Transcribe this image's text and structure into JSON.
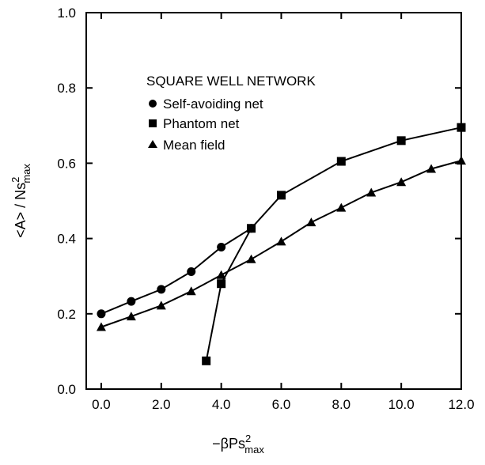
{
  "chart_data": {
    "type": "line",
    "title": "SQUARE WELL NETWORK",
    "xlabel": {
      "main": "−βPs",
      "sup": "2",
      "sub": "max"
    },
    "ylabel": {
      "main": "<A> / Ns",
      "sup": "2",
      "sub": "max"
    },
    "xlim": [
      -0.5,
      12.0
    ],
    "ylim": [
      0.0,
      1.0
    ],
    "xticks": [
      0,
      2,
      4,
      6,
      8,
      10,
      12
    ],
    "xtick_labels": [
      "0.0",
      "2.0",
      "4.0",
      "6.0",
      "8.0",
      "10.0",
      "12.0"
    ],
    "yticks": [
      0.0,
      0.2,
      0.4,
      0.6,
      0.8,
      1.0
    ],
    "ytick_labels": [
      "0.0",
      "0.2",
      "0.4",
      "0.6",
      "0.8",
      "1.0"
    ],
    "grid": false,
    "legend_position": "top-left (inside plot)",
    "series": [
      {
        "name": "Self-avoiding net",
        "marker": "circle",
        "x": [
          0,
          1,
          2,
          3,
          4,
          5
        ],
        "y": [
          0.2,
          0.233,
          0.265,
          0.312,
          0.377,
          0.427
        ]
      },
      {
        "name": "Phantom net",
        "marker": "square",
        "x": [
          3.5,
          4,
          5,
          6,
          8,
          10,
          12
        ],
        "y": [
          0.075,
          0.28,
          0.427,
          0.515,
          0.605,
          0.66,
          0.695
        ]
      },
      {
        "name": "Mean field",
        "marker": "triangle",
        "x": [
          0,
          1,
          2,
          3,
          4,
          5,
          6,
          7,
          8,
          9,
          10,
          11,
          12
        ],
        "y": [
          0.165,
          0.193,
          0.222,
          0.26,
          0.303,
          0.345,
          0.392,
          0.443,
          0.482,
          0.522,
          0.55,
          0.585,
          0.607
        ]
      }
    ]
  }
}
